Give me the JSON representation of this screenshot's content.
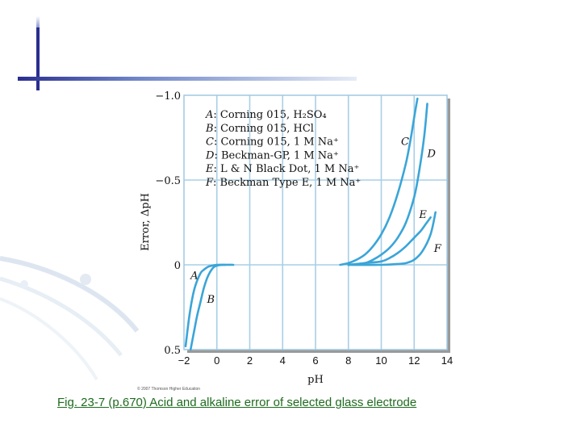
{
  "slide": {
    "caption": "Fig. 23-7 (p.670) Acid and alkaline error of selected glass electrode",
    "copyright": "© 2007 Thomson Higher Education"
  },
  "colors": {
    "curve": "#3aa5d8",
    "grid": "#a9cfe6",
    "plot_bg": "#ffffff",
    "caption": "#1e6b1e",
    "accent_bar": "#2a2f8f"
  },
  "chart_data": {
    "type": "line",
    "title": "",
    "xlabel": "pH",
    "ylabel": "Error, ΔpH",
    "xlim": [
      -2,
      14
    ],
    "ylim": [
      0.5,
      -1.0
    ],
    "y_inverted": true,
    "x_ticks": [
      -2,
      0,
      2,
      4,
      6,
      8,
      10,
      12,
      14
    ],
    "x_tick_labels": [
      "−2",
      "0",
      "2",
      "4",
      "6",
      "8",
      "10",
      "12",
      "14"
    ],
    "y_ticks": [
      -1.0,
      -0.5,
      0,
      0.5
    ],
    "y_tick_labels": [
      "−1.0",
      "−0.5",
      "0",
      "0.5"
    ],
    "grid": true,
    "legend_position": "top-left",
    "legend": [
      {
        "key": "A",
        "text": "Corning 015, H₂SO₄"
      },
      {
        "key": "B",
        "text": "Corning 015, HCl"
      },
      {
        "key": "C",
        "text": "Corning 015, 1 M Na⁺"
      },
      {
        "key": "D",
        "text": "Beckman-GP, 1 M Na⁺"
      },
      {
        "key": "E",
        "text": "L & N Black Dot, 1 M Na⁺"
      },
      {
        "key": "F",
        "text": "Beckman Type E, 1 M Na⁺"
      }
    ],
    "series": [
      {
        "name": "A",
        "label_at": [
          -1.6,
          0.06
        ],
        "x": [
          -1.9,
          -1.7,
          -1.5,
          -1.3,
          -1.0,
          -0.8,
          -0.5,
          -0.2,
          0,
          0.5
        ],
        "y": [
          0.48,
          0.32,
          0.2,
          0.12,
          0.05,
          0.03,
          0.01,
          0.003,
          0,
          0
        ]
      },
      {
        "name": "B",
        "label_at": [
          -0.6,
          0.2
        ],
        "x": [
          -1.6,
          -1.4,
          -1.2,
          -1.0,
          -0.8,
          -0.6,
          -0.4,
          -0.2,
          0,
          0.4,
          1.0
        ],
        "y": [
          0.5,
          0.4,
          0.3,
          0.22,
          0.14,
          0.08,
          0.04,
          0.015,
          0.005,
          0,
          0
        ]
      },
      {
        "name": "C",
        "label_at": [
          11.2,
          -0.73
        ],
        "x": [
          7.5,
          8.0,
          8.5,
          9.0,
          9.5,
          10.0,
          10.5,
          11.0,
          11.5,
          11.8,
          12.0,
          12.2
        ],
        "y": [
          0,
          -0.01,
          -0.03,
          -0.06,
          -0.11,
          -0.18,
          -0.28,
          -0.42,
          -0.6,
          -0.75,
          -0.87,
          -0.98
        ]
      },
      {
        "name": "D",
        "label_at": [
          12.8,
          -0.66
        ],
        "x": [
          8.0,
          9.0,
          9.5,
          10.0,
          10.5,
          11.0,
          11.5,
          12.0,
          12.3,
          12.6,
          12.8
        ],
        "y": [
          0,
          -0.01,
          -0.03,
          -0.06,
          -0.1,
          -0.16,
          -0.25,
          -0.4,
          -0.55,
          -0.75,
          -0.95
        ]
      },
      {
        "name": "E",
        "label_at": [
          12.3,
          -0.3
        ],
        "x": [
          8.0,
          9.0,
          10.0,
          10.5,
          11.0,
          11.5,
          12.0,
          12.4,
          12.7,
          13.0
        ],
        "y": [
          0,
          -0.01,
          -0.02,
          -0.04,
          -0.07,
          -0.11,
          -0.16,
          -0.2,
          -0.24,
          -0.28
        ]
      },
      {
        "name": "F",
        "label_at": [
          13.2,
          -0.1
        ],
        "x": [
          8.0,
          10.0,
          11.0,
          11.5,
          12.0,
          12.5,
          13.0,
          13.3
        ],
        "y": [
          0,
          0,
          -0.005,
          -0.01,
          -0.03,
          -0.08,
          -0.18,
          -0.31
        ]
      }
    ]
  }
}
